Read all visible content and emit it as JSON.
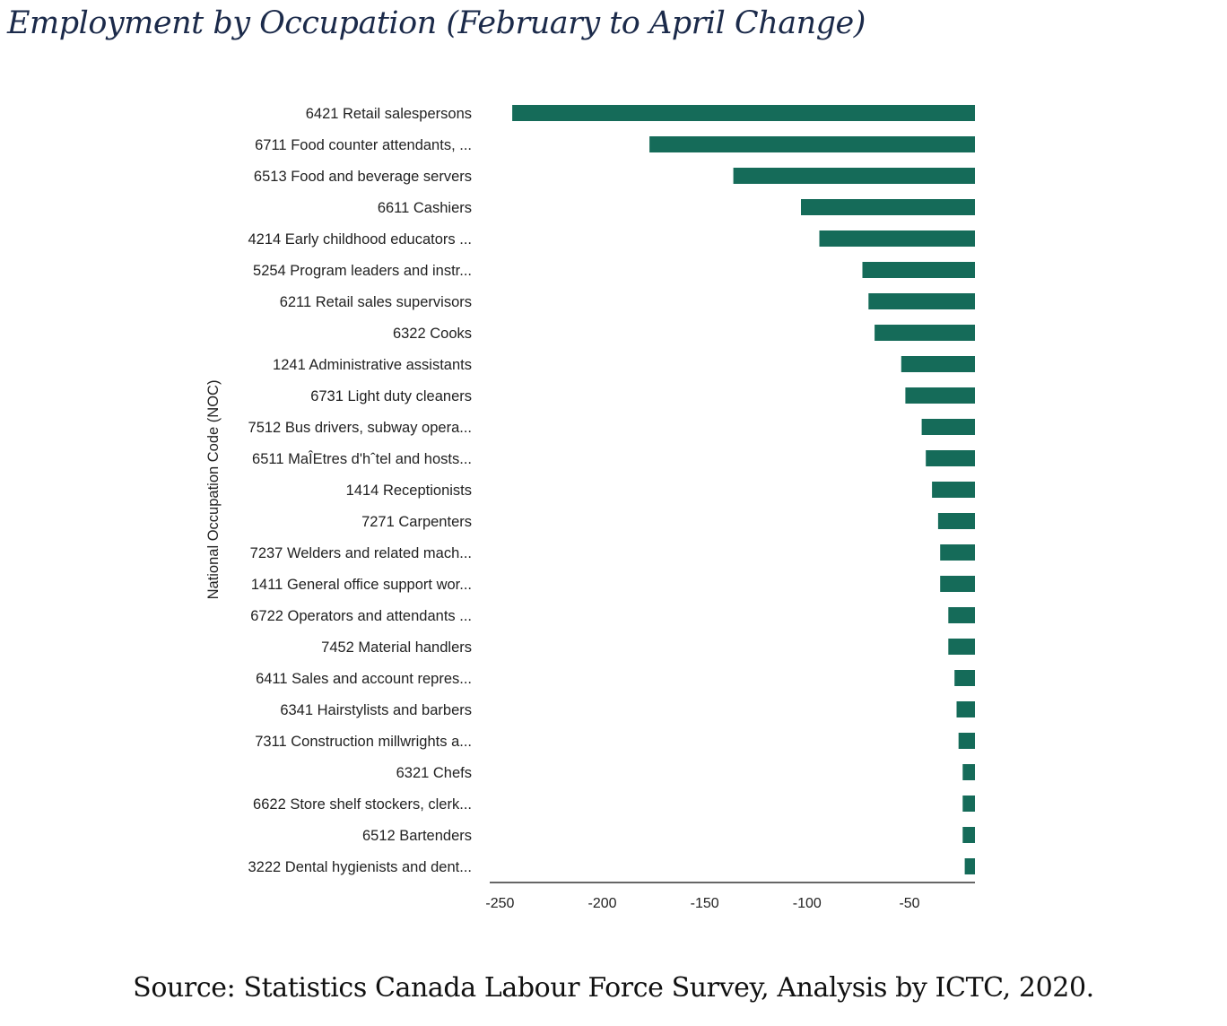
{
  "title": "Employment by Occupation (February to April Change)",
  "source": "Source: Statistics Canada Labour Force Survey, Analysis by ICTC, 2020.",
  "chart_data": {
    "type": "bar",
    "orientation": "horizontal",
    "title": "Employment by Occupation (February to April Change)",
    "ylabel": "National Occupation Code (NOC)",
    "xlabel": "",
    "xlim": [
      -255,
      -18
    ],
    "xticks": [
      -250,
      -200,
      -150,
      -100,
      -50
    ],
    "bar_color": "#156b59",
    "categories": [
      "6421 Retail salespersons",
      "6711 Food counter attendants, ...",
      "6513 Food and beverage servers",
      "6611 Cashiers",
      "4214 Early childhood educators ...",
      "5254 Program leaders and instr...",
      "6211 Retail sales supervisors",
      "6322 Cooks",
      "1241 Administrative assistants",
      "6731 Light duty cleaners",
      "7512 Bus drivers, subway opera...",
      "6511 MaÎEtres d'hˆtel and hosts...",
      "1414 Receptionists",
      "7271 Carpenters",
      "7237 Welders and related mach...",
      "1411 General office support wor...",
      "6722 Operators and attendants ...",
      "7452 Material handlers",
      "6411 Sales and account repres...",
      "6341 Hairstylists and barbers",
      "7311 Construction millwrights a...",
      "6321 Chefs",
      "6622 Store shelf stockers, clerk...",
      "6512 Bartenders",
      "3222 Dental hygienists and dent..."
    ],
    "values": [
      -244,
      -177,
      -136,
      -103,
      -94,
      -73,
      -70,
      -67,
      -54,
      -52,
      -44,
      -42,
      -39,
      -36,
      -35,
      -35,
      -31,
      -31,
      -28,
      -27,
      -26,
      -24,
      -24,
      -24,
      -23
    ]
  }
}
